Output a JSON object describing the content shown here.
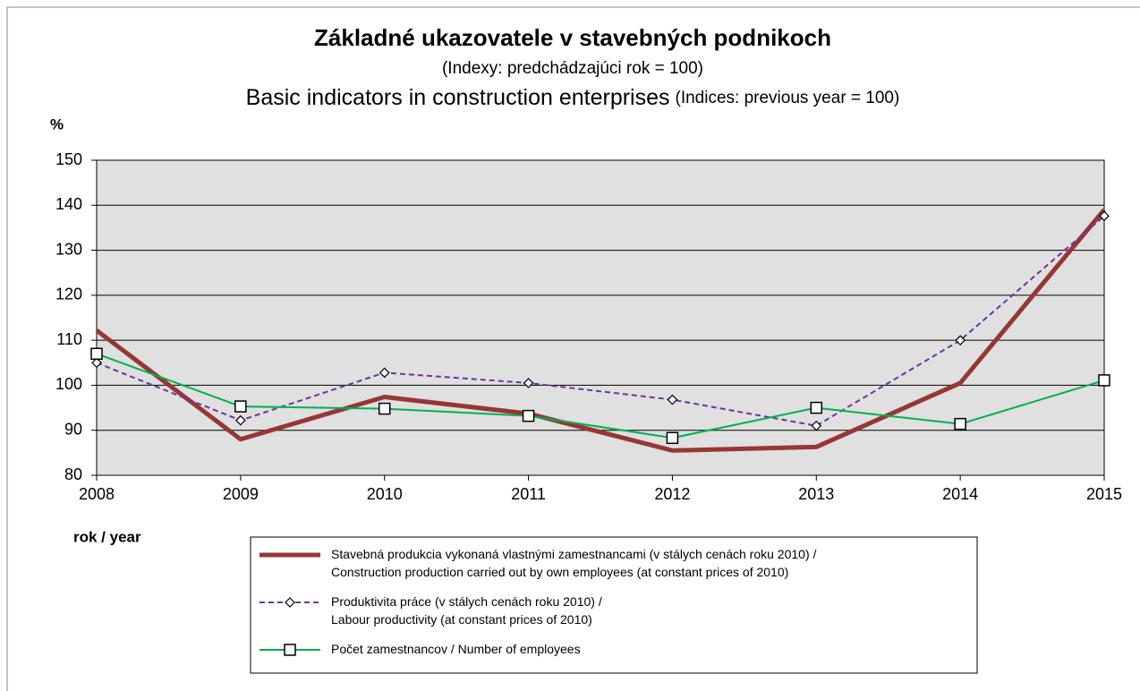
{
  "chart_data": {
    "type": "line",
    "title": "Základné ukazovatele v stavebných podnikoch",
    "subtitle": "(Indexy:  predchádzajúci rok  = 100)",
    "title_en": "Basic indicators in construction enterprises",
    "subtitle_en": "(Indices:  previous year = 100)",
    "y_label": "%",
    "x_label": "rok / year",
    "x": [
      2008,
      2009,
      2010,
      2011,
      2012,
      2013,
      2014,
      2015
    ],
    "xlim": [
      2008,
      2015
    ],
    "xticks": [
      2008,
      2009,
      2010,
      2011,
      2012,
      2013,
      2014,
      2015
    ],
    "ylim": [
      80,
      150
    ],
    "yticks": [
      80,
      90,
      100,
      110,
      120,
      130,
      140,
      150
    ],
    "grid": true,
    "series": [
      {
        "name": "Stavebná produkcia vykonaná vlastnými zamestnancami (v stálych cenách roku 2010) /\nConstruction production carried out by own employees (at constant prices of 2010)",
        "color": "#953735",
        "width": 5,
        "dashed": false,
        "marker": null,
        "values": [
          112.2,
          88,
          97.4,
          93.7,
          85.5,
          86.3,
          100.5,
          139
        ]
      },
      {
        "name": "Produktivita práce (v stálych cenách roku 2010)  /\nLabour productivity (at constant prices of 2010)",
        "color": "#7030a0",
        "width": 2,
        "dashed": true,
        "marker": "diamond",
        "values": [
          105,
          92.2,
          102.8,
          100.5,
          96.8,
          91,
          110,
          137.6
        ]
      },
      {
        "name": "Počet zamestnancov / Number of employees",
        "color": "#00b050",
        "width": 2,
        "dashed": false,
        "marker": "square",
        "values": [
          107,
          95.3,
          94.8,
          93.2,
          88.3,
          95,
          91.4,
          101.1
        ]
      }
    ]
  }
}
